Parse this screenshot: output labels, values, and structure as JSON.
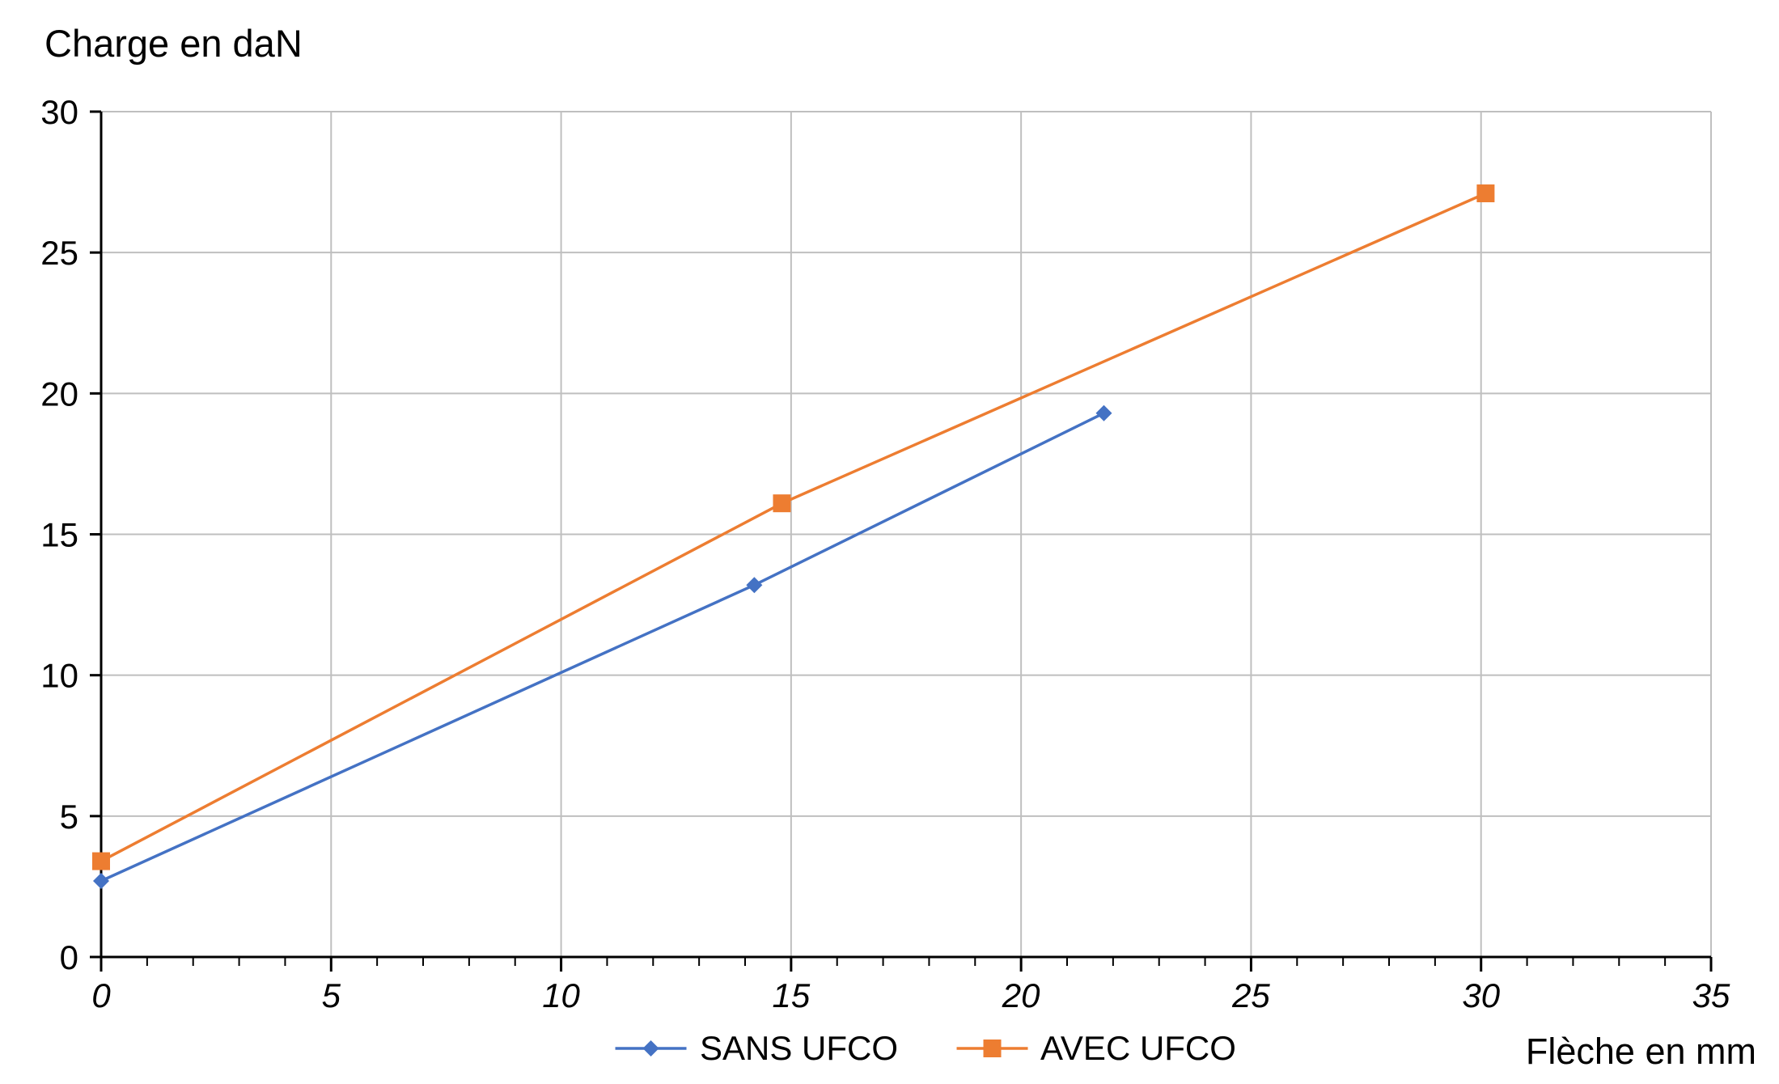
{
  "chart_data": {
    "type": "line",
    "title": "",
    "ylabel": "Charge en daN",
    "xlabel": "Flèche en mm",
    "xlim": [
      0,
      35
    ],
    "ylim": [
      0,
      30
    ],
    "xticks": [
      0,
      5,
      10,
      15,
      20,
      25,
      30,
      35
    ],
    "yticks": [
      0,
      5,
      10,
      15,
      20,
      25,
      30
    ],
    "x_minor_tick_step": 1,
    "grid": true,
    "grid_color": "#bfbfbf",
    "axis_color": "#000000",
    "legend_position": "bottom",
    "series": [
      {
        "name": "SANS UFCO",
        "color": "#4472c4",
        "marker": "diamond",
        "points": [
          [
            0,
            2.7
          ],
          [
            14.2,
            13.2
          ],
          [
            21.8,
            19.3
          ]
        ]
      },
      {
        "name": "AVEC UFCO",
        "color": "#ed7d31",
        "marker": "square",
        "points": [
          [
            0,
            3.4
          ],
          [
            14.8,
            16.1
          ],
          [
            30.1,
            27.1
          ]
        ]
      }
    ]
  }
}
